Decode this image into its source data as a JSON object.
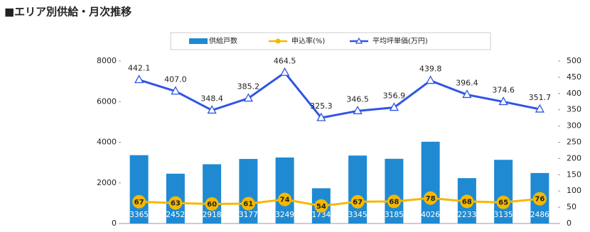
{
  "chart_data": {
    "type": "combo",
    "title": "■エリア別供給・月次推移",
    "categories": [
      null,
      null,
      null,
      null,
      null,
      null,
      null,
      null,
      null,
      null,
      null,
      null
    ],
    "series": [
      {
        "name": "供給戸数",
        "type": "bar",
        "color": "#1f8ad2",
        "values": [
          3365,
          2452,
          2918,
          3177,
          3249,
          1734,
          3345,
          3185,
          4026,
          2233,
          3135,
          2486
        ]
      },
      {
        "name": "申込率(%)",
        "type": "line",
        "marker": "circle",
        "axis": "y2",
        "color": "#f5b800",
        "values": [
          67,
          63,
          60,
          61,
          74,
          54,
          67,
          68,
          78,
          68,
          65,
          76
        ]
      },
      {
        "name": "平均坪単価(万円)",
        "type": "line",
        "marker": "triangle",
        "axis": "y2",
        "color": "#2f54e6",
        "values": [
          442.1,
          407.0,
          348.4,
          385.2,
          464.5,
          325.3,
          346.5,
          356.9,
          439.8,
          396.4,
          374.6,
          351.7
        ],
        "value_labels": [
          "442.1",
          "407.0",
          "348.4",
          "385.2",
          "464.5",
          "325.3",
          "346.5",
          "356.9",
          "439.8",
          "396.4",
          "374.6",
          "351.7"
        ]
      }
    ],
    "ylim": [
      0,
      8000
    ],
    "yticks": [
      0,
      2000,
      4000,
      6000,
      8000
    ],
    "y2lim": [
      0,
      500
    ],
    "y2ticks": [
      0,
      50,
      100,
      150,
      200,
      250,
      300,
      350,
      400,
      450,
      500
    ],
    "grid": false
  }
}
